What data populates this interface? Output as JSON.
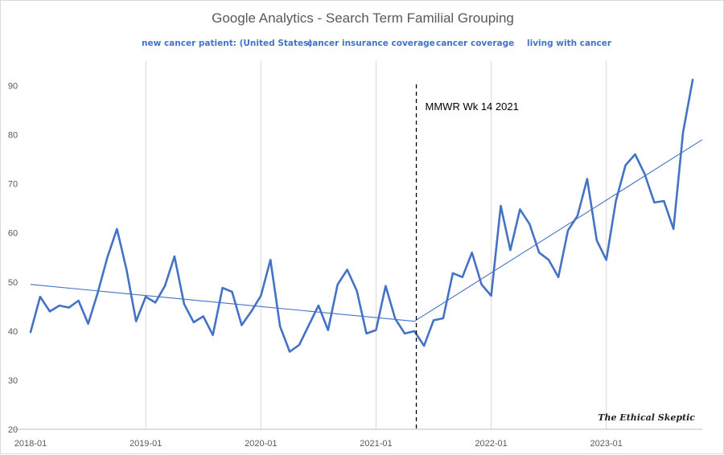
{
  "chart_data": {
    "type": "line",
    "title": "Google Analytics - Search Term Familial Grouping",
    "legend": [
      "new cancer patient: (United States)",
      "cancer insurance coverage",
      "cancer coverage",
      "living with cancer"
    ],
    "legend_placement": "top",
    "x_tick_labels": [
      "2018-01",
      "2019-01",
      "2020-01",
      "2021-01",
      "2022-01",
      "2023-01"
    ],
    "x_tick_months": [
      0,
      12,
      24,
      36,
      48,
      60
    ],
    "y_ticks": [
      20,
      30,
      40,
      50,
      60,
      70,
      80,
      90
    ],
    "ylim": [
      20,
      95
    ],
    "x_range_months": [
      0,
      70
    ],
    "grid": "vertical",
    "series": [
      {
        "color": "#4472c4",
        "x_months": [
          0,
          1,
          2,
          3,
          4,
          5,
          6,
          7,
          8,
          9,
          10,
          11,
          12,
          13,
          14,
          15,
          16,
          17,
          18,
          19,
          20,
          21,
          22,
          23,
          24,
          25,
          26,
          27,
          28,
          29,
          30,
          31,
          32,
          33,
          34,
          35,
          36,
          37,
          38,
          39,
          40,
          41,
          42,
          43,
          44,
          45,
          46,
          47,
          48,
          49,
          50,
          51,
          52,
          53,
          54,
          55,
          56,
          57,
          58,
          59,
          60,
          61,
          62,
          63,
          64,
          65,
          66,
          67,
          68,
          69
        ],
        "values": [
          39.8,
          47,
          44,
          45.2,
          44.8,
          46.2,
          41.5,
          47.8,
          55,
          60.8,
          52.5,
          42,
          47,
          45.8,
          49.2,
          55.2,
          45.5,
          41.8,
          43,
          39.2,
          48.8,
          48,
          41.2,
          44,
          47.2,
          54.5,
          41,
          35.8,
          37.2,
          41.2,
          45.2,
          40.2,
          49.5,
          52.5,
          48.2,
          39.5,
          40.2,
          49.2,
          42.5,
          39.5,
          40,
          37,
          42.2,
          42.6,
          51.8,
          51,
          56,
          49.5,
          47.2,
          65.5,
          56.5,
          64.8,
          61.8,
          56,
          54.5,
          51,
          60.5,
          63.5,
          71,
          58.5,
          54.5,
          66.5,
          73.8,
          76,
          72,
          66.2,
          66.5,
          60.8,
          80.5,
          91.2
        ]
      }
    ],
    "trendlines": [
      {
        "x_months": [
          0,
          40
        ],
        "values": [
          49.5,
          42.0
        ]
      },
      {
        "x_months": [
          40,
          70
        ],
        "values": [
          42.0,
          79.0
        ]
      }
    ],
    "annotation": {
      "label": "MMWR Wk 14 2021",
      "x_month": 40.2
    },
    "watermark": "The Ethical Skeptic"
  }
}
